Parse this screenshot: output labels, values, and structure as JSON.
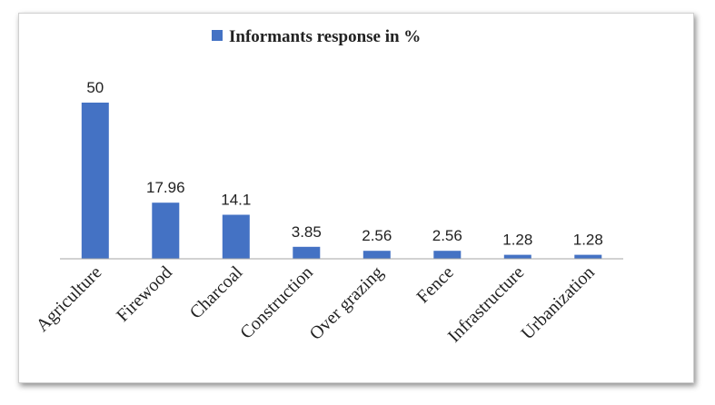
{
  "chart_data": {
    "type": "bar",
    "categories": [
      "Agriculture",
      "Firewood",
      "Charcoal",
      "Construction",
      "Over grazing",
      "Fence",
      "Infrastructure",
      "Urbanization"
    ],
    "series": [
      {
        "name": "Informants response in %",
        "values": [
          50,
          17.96,
          14.1,
          3.85,
          2.56,
          2.56,
          1.28,
          1.28
        ]
      }
    ],
    "value_labels": [
      "50",
      "17.96",
      "14.1",
      "3.85",
      "2.56",
      "2.56",
      "1.28",
      "1.28"
    ],
    "title": "",
    "xlabel": "",
    "ylabel": "",
    "ylim": [
      0,
      50
    ],
    "grid": false,
    "legend_position": "top",
    "bar_color": "#4472C4"
  }
}
